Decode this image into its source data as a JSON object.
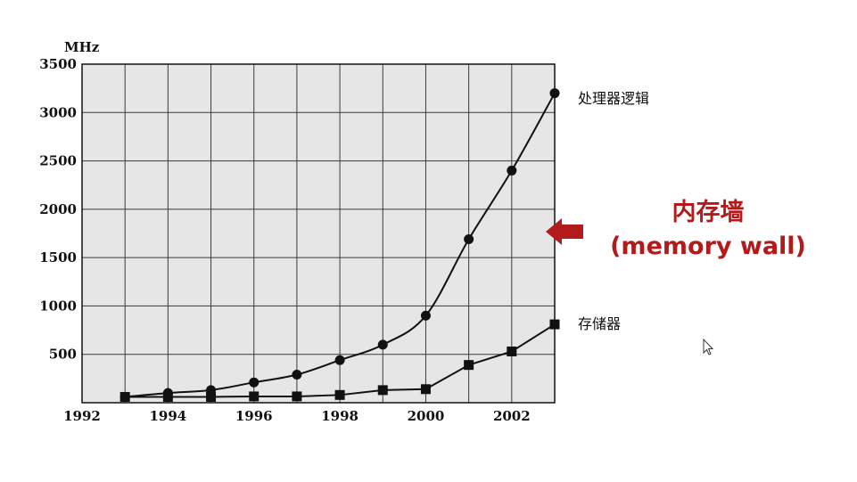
{
  "chart_data": {
    "type": "line",
    "ylabel": "MHz",
    "xlim": [
      1992,
      2003
    ],
    "ylim": [
      0,
      3500
    ],
    "x_ticks": [
      "1992",
      "1994",
      "1996",
      "1998",
      "2000",
      "2002"
    ],
    "y_ticks": [
      "500",
      "1000",
      "1500",
      "2000",
      "2500",
      "3000",
      "3500"
    ],
    "grid": true,
    "series": [
      {
        "name": "处理器逻辑",
        "marker": "circle",
        "x": [
          1993,
          1994,
          1995,
          1996,
          1997,
          1998,
          1999,
          2000,
          2001,
          2002,
          2003
        ],
        "values": [
          60,
          100,
          130,
          210,
          290,
          440,
          600,
          900,
          1690,
          2400,
          3200
        ]
      },
      {
        "name": "存储器",
        "marker": "square",
        "x": [
          1993,
          1994,
          1995,
          1996,
          1997,
          1998,
          1999,
          2000,
          2001,
          2002,
          2003
        ],
        "values": [
          60,
          60,
          60,
          65,
          65,
          80,
          130,
          140,
          390,
          530,
          810
        ]
      }
    ]
  },
  "annotation": {
    "title": "内存墙",
    "subtitle": "(memory wall)",
    "color": "#b31b1b"
  },
  "colors": {
    "plot_bg": "#e6e6e6",
    "grid": "#3a3a3a",
    "line": "#111111"
  }
}
